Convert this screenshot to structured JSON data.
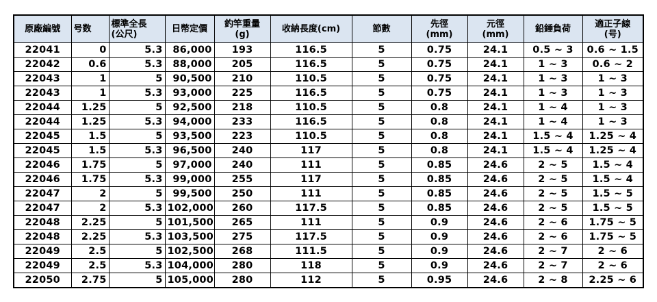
{
  "colors": {
    "header_bg": "#dbe5f1",
    "border": "#000000",
    "text": "#000000",
    "page_bg": "#ffffff"
  },
  "table": {
    "columns": [
      {
        "line1": "原廠編號",
        "line2": "",
        "header_align": "center",
        "cell_align": "center"
      },
      {
        "line1": "号数",
        "line2": "",
        "header_align": "left",
        "cell_align": "right"
      },
      {
        "line1": "標準全長",
        "line2": "(公尺)",
        "header_align": "left",
        "cell_align": "right"
      },
      {
        "line1": "日幣定價",
        "line2": "",
        "header_align": "center",
        "cell_align": "right"
      },
      {
        "line1": "釣竿重量",
        "line2": "(g)",
        "header_align": "center",
        "cell_align": "center"
      },
      {
        "line1": "收納長度(cm)",
        "line2": "",
        "header_align": "center",
        "cell_align": "center"
      },
      {
        "line1": "節數",
        "line2": "",
        "header_align": "center",
        "cell_align": "center"
      },
      {
        "line1": "先徑",
        "line2": "(mm)",
        "header_align": "center",
        "cell_align": "center"
      },
      {
        "line1": "元徑",
        "line2": "(mm)",
        "header_align": "center",
        "cell_align": "center"
      },
      {
        "line1": "鉛錘負荷",
        "line2": "",
        "header_align": "center",
        "cell_align": "center"
      },
      {
        "line1": "適正子線",
        "line2": "(号)",
        "header_align": "center",
        "cell_align": "center"
      }
    ],
    "rows": [
      [
        "22041",
        "0",
        "5.3",
        "86,000",
        "193",
        "116.5",
        "5",
        "0.75",
        "24.1",
        "0.5 ~ 3",
        "0.6 ~ 1.5"
      ],
      [
        "22042",
        "0.6",
        "5.3",
        "88,000",
        "205",
        "116.5",
        "5",
        "0.75",
        "24.1",
        "1 ~ 3",
        "0.6 ~ 2"
      ],
      [
        "22043",
        "1",
        "5",
        "90,500",
        "210",
        "110.5",
        "5",
        "0.75",
        "24.1",
        "1 ~ 3",
        "1 ~ 3"
      ],
      [
        "22043",
        "1",
        "5.3",
        "93,000",
        "225",
        "116.5",
        "5",
        "0.75",
        "24.1",
        "1 ~ 3",
        "1 ~ 3"
      ],
      [
        "22044",
        "1.25",
        "5",
        "92,500",
        "218",
        "110.5",
        "5",
        "0.8",
        "24.1",
        "1 ~ 4",
        "1 ~ 3"
      ],
      [
        "22044",
        "1.25",
        "5.3",
        "94,000",
        "233",
        "116.5",
        "5",
        "0.8",
        "24.1",
        "1 ~ 4",
        "1 ~ 3"
      ],
      [
        "22045",
        "1.5",
        "5",
        "93,500",
        "223",
        "110.5",
        "5",
        "0.8",
        "24.1",
        "1.5 ~ 4",
        "1.25 ~ 4"
      ],
      [
        "22045",
        "1.5",
        "5.3",
        "96,500",
        "240",
        "117",
        "5",
        "0.8",
        "24.1",
        "1.5 ~ 4",
        "1.25 ~ 4"
      ],
      [
        "22046",
        "1.75",
        "5",
        "97,000",
        "240",
        "111",
        "5",
        "0.85",
        "24.6",
        "2 ~ 5",
        "1.5 ~ 4"
      ],
      [
        "22046",
        "1.75",
        "5.3",
        "99,000",
        "255",
        "117",
        "5",
        "0.85",
        "24.6",
        "2 ~ 5",
        "1.5 ~ 4"
      ],
      [
        "22047",
        "2",
        "5",
        "99,500",
        "250",
        "111",
        "5",
        "0.85",
        "24.6",
        "2 ~ 5",
        "1.5 ~ 5"
      ],
      [
        "22047",
        "2",
        "5.3",
        "102,000",
        "260",
        "117.5",
        "5",
        "0.85",
        "24.6",
        "2 ~ 5",
        "1.5 ~ 5"
      ],
      [
        "22048",
        "2.25",
        "5",
        "101,500",
        "265",
        "111",
        "5",
        "0.9",
        "24.6",
        "2 ~ 6",
        "1.75 ~ 5"
      ],
      [
        "22048",
        "2.25",
        "5.3",
        "103,500",
        "275",
        "117.5",
        "5",
        "0.9",
        "24.6",
        "2 ~ 6",
        "1.75 ~ 5"
      ],
      [
        "22049",
        "2.5",
        "5",
        "102,500",
        "268",
        "111.5",
        "5",
        "0.9",
        "24.6",
        "2 ~ 7",
        "2 ~ 6"
      ],
      [
        "22049",
        "2.5",
        "5.3",
        "104,000",
        "280",
        "118",
        "5",
        "0.9",
        "24.6",
        "2 ~ 7",
        "2 ~ 6"
      ],
      [
        "22050",
        "2.75",
        "5",
        "105,000",
        "280",
        "112",
        "5",
        "0.95",
        "24.6",
        "2 ~ 8",
        "2.25 ~ 6"
      ]
    ]
  }
}
